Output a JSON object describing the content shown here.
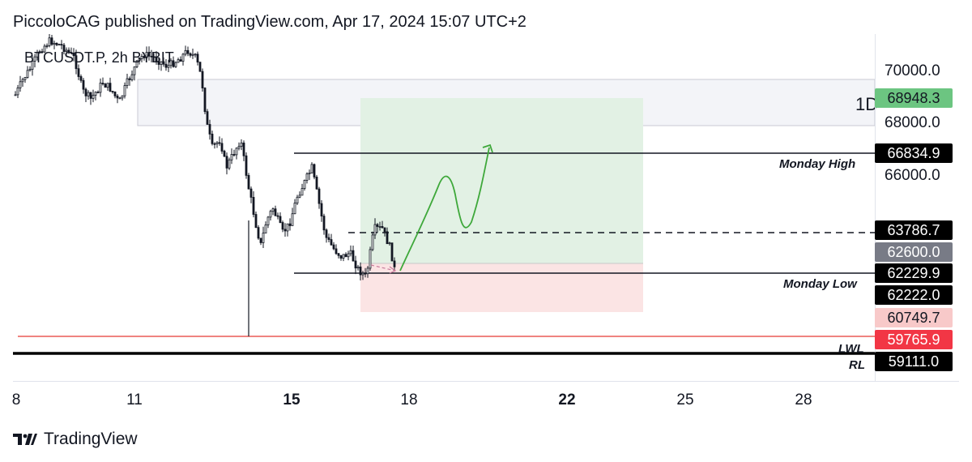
{
  "header": {
    "published_text": "PiccoloCAG published on TradingView.com, Apr 17, 2024 15:07 UTC+2"
  },
  "chart": {
    "symbol_line": "BTCUSDT.P, 2h BYBIT",
    "zone_label": "1D",
    "annotations": {
      "monday_high": "Monday High",
      "monday_low": "Monday Low",
      "lwl": "LWL",
      "rl": "RL"
    }
  },
  "price_axis": {
    "ticks": [
      "70000.0",
      "68000.0",
      "66000.0"
    ]
  },
  "price_labels": [
    {
      "value": "68948.3",
      "bg": "#6cc581",
      "color": "#131722"
    },
    {
      "value": "66834.9",
      "bg": "#000000",
      "color": "#ffffff"
    },
    {
      "value": "63786.7",
      "bg": "#000000",
      "color": "#ffffff"
    },
    {
      "value": "62600.0",
      "bg": "#787b86",
      "color": "#ffffff"
    },
    {
      "value": "62229.9",
      "bg": "#000000",
      "color": "#ffffff"
    },
    {
      "value": "62222.0",
      "bg": "#000000",
      "color": "#ffffff"
    },
    {
      "value": "60749.7",
      "bg": "#f8c9c9",
      "color": "#131722"
    },
    {
      "value": "59765.9",
      "bg": "#f23645",
      "color": "#ffffff"
    },
    {
      "value": "59111.0",
      "bg": "#000000",
      "color": "#ffffff"
    }
  ],
  "time_axis": {
    "ticks": [
      "8",
      "11",
      "15",
      "18",
      "22",
      "25",
      "28"
    ]
  },
  "footer": {
    "brand": "TradingView"
  },
  "colors": {
    "target_zone": "#e2f1e4",
    "stop_zone": "#fbe4e4",
    "resistance_zone": "#f3f4f8",
    "drawn_arrow": "#3ea83a",
    "lwl_line": "#e53935"
  }
}
